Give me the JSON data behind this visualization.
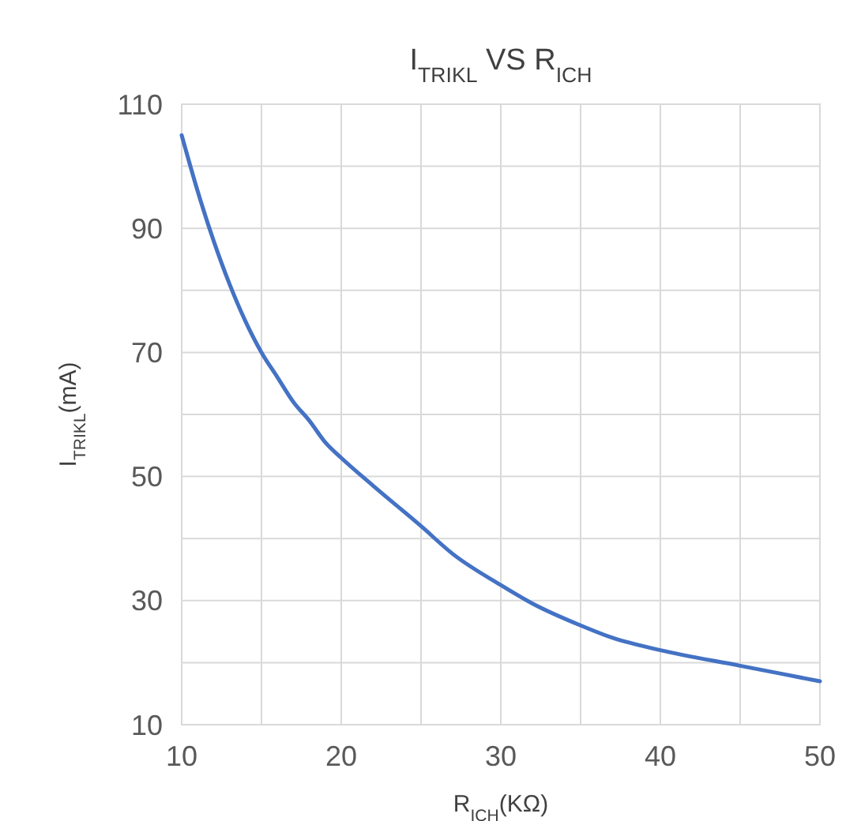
{
  "chart_data": {
    "type": "line",
    "title": "I$_{TRIKL}$ VS R$_{ICH}$",
    "xlabel": "R$_{ICH}$(KΩ)",
    "ylabel": "I$_{TRIKL}$(mA)",
    "x": [
      10,
      11,
      12,
      13,
      14,
      15,
      16,
      17,
      18,
      19,
      20,
      22,
      25,
      27,
      30,
      32,
      35,
      37,
      40,
      45,
      50
    ],
    "series": [
      {
        "color": "#4472c4",
        "values": [
          105,
          96,
          88,
          81,
          75,
          70,
          66,
          62,
          59,
          55.5,
          53,
          48.5,
          42,
          37.5,
          32.5,
          29.5,
          26,
          24,
          22,
          19.5,
          17
        ]
      }
    ],
    "xlim": [
      10,
      50
    ],
    "xticks": [
      10,
      {
        "value": 15,
        "label": null
      },
      20,
      {
        "value": 25,
        "label": null
      },
      30,
      {
        "value": 35,
        "label": null
      },
      40,
      {
        "value": 45,
        "label": null
      },
      50
    ],
    "ylim": [
      10,
      110
    ],
    "yticks": [
      10,
      {
        "value": 20,
        "label": null
      },
      30,
      {
        "value": 40,
        "label": null
      },
      50,
      {
        "value": 60,
        "label": null
      },
      70,
      {
        "value": 80,
        "label": null
      },
      90,
      {
        "value": 100,
        "label": null
      },
      110
    ],
    "grid": true,
    "marker": "none",
    "line_style": "solid"
  }
}
